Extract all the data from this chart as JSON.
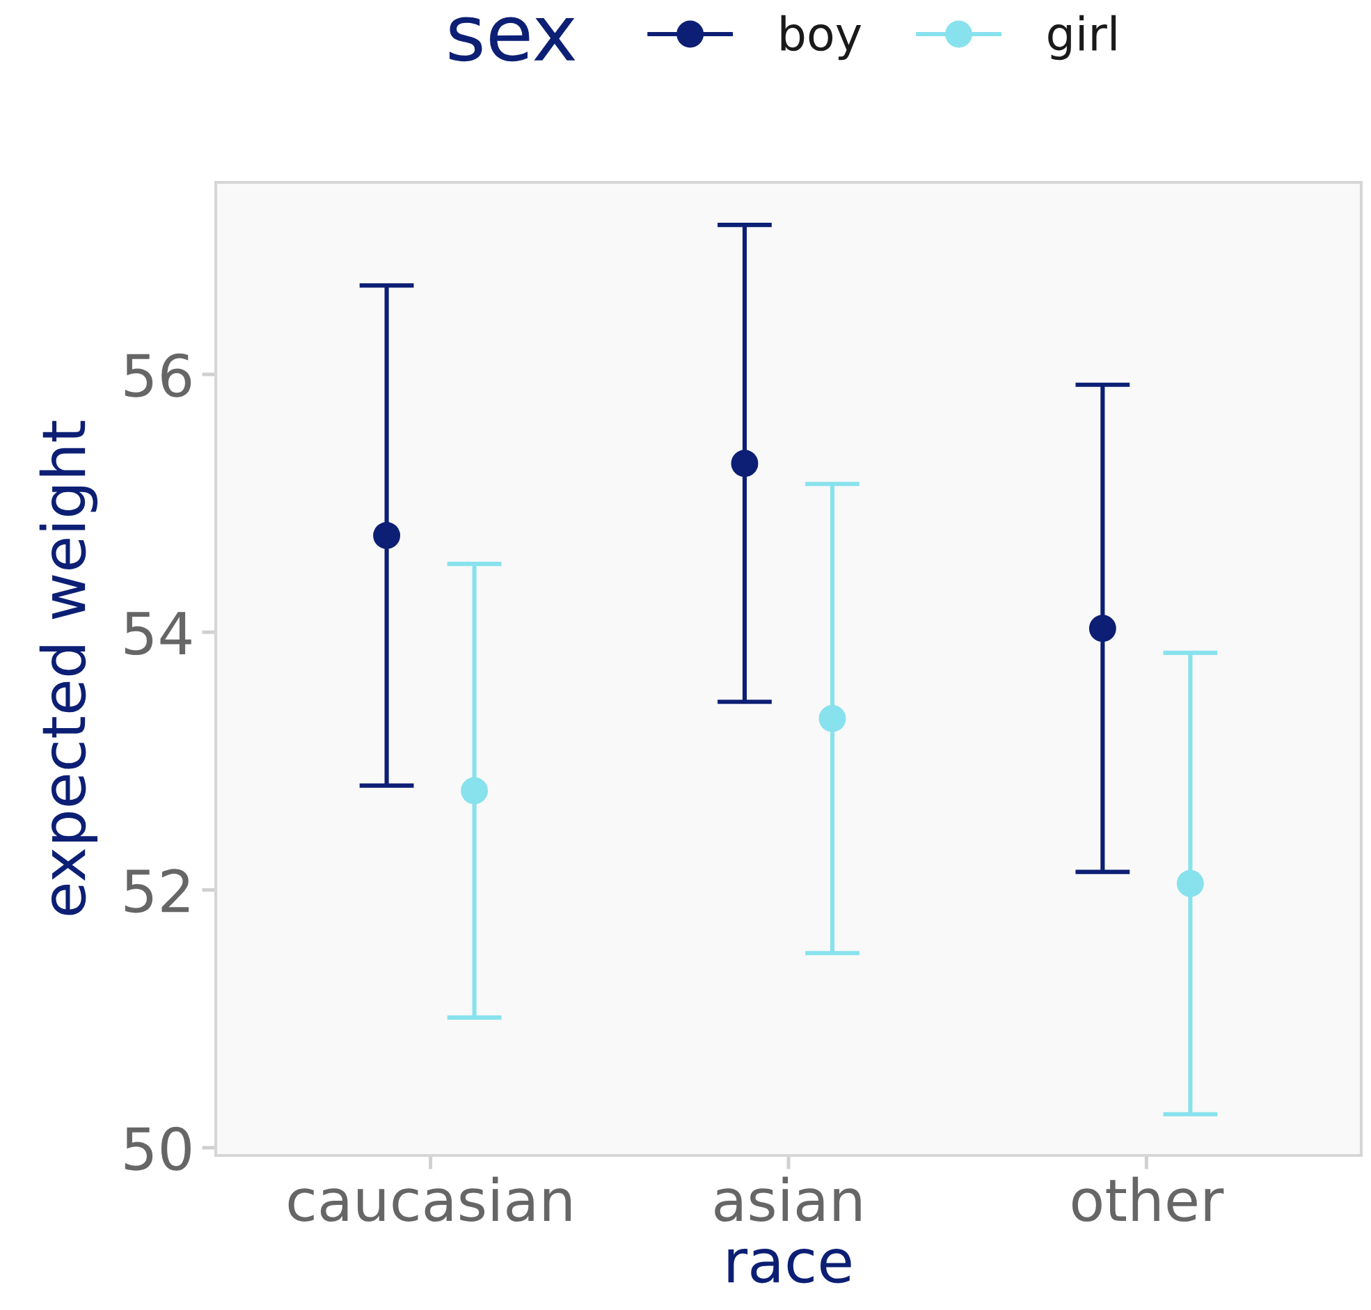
{
  "chart_data": {
    "type": "scatter",
    "xlabel": "race",
    "ylabel": "expected weight",
    "legend_title": "sex",
    "categories": [
      "caucasian",
      "asian",
      "other"
    ],
    "series": [
      {
        "name": "boy",
        "color": "#0c1f74",
        "values": [
          54.75,
          55.31,
          54.03
        ],
        "errors": [
          1.94,
          1.85,
          1.89
        ]
      },
      {
        "name": "girl",
        "color": "#88e2ed",
        "values": [
          52.77,
          53.33,
          52.05
        ],
        "errors": [
          1.76,
          1.82,
          1.79
        ]
      }
    ],
    "ylim": [
      49.94,
      57.49
    ],
    "yticks": [
      50,
      52,
      54,
      56
    ],
    "marker": "circle",
    "legend": "top"
  }
}
